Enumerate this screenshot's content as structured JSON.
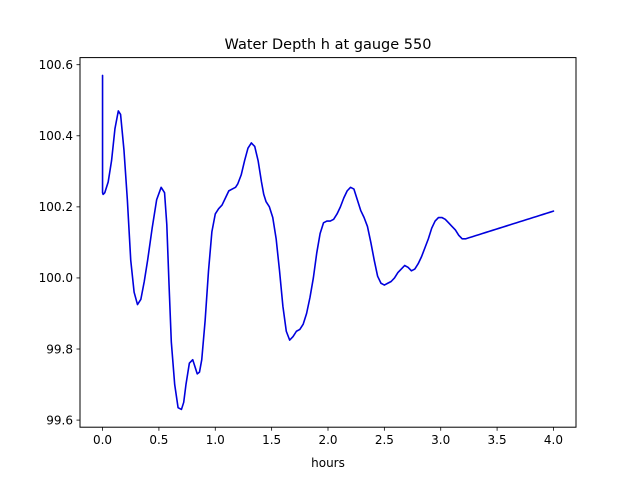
{
  "chart_data": {
    "type": "line",
    "title": "Water Depth h at gauge 550",
    "xlabel": "hours",
    "ylabel": "",
    "xlim": [
      -0.2,
      4.2
    ],
    "ylim": [
      99.58,
      100.62
    ],
    "xticks": [
      0.0,
      0.5,
      1.0,
      1.5,
      2.0,
      2.5,
      3.0,
      3.5,
      4.0
    ],
    "xtick_labels": [
      "0.0",
      "0.5",
      "1.0",
      "1.5",
      "2.0",
      "2.5",
      "3.0",
      "3.5",
      "4.0"
    ],
    "yticks": [
      99.6,
      99.8,
      100.0,
      100.2,
      100.4,
      100.6
    ],
    "ytick_labels": [
      "99.6",
      "99.8",
      "100.0",
      "100.2",
      "100.4",
      "100.6"
    ],
    "grid": false,
    "legend": "none",
    "series": [
      {
        "color": "#0000dd",
        "x": [
          0.0,
          0.0,
          0.005,
          0.02,
          0.05,
          0.08,
          0.11,
          0.14,
          0.16,
          0.19,
          0.22,
          0.25,
          0.28,
          0.31,
          0.34,
          0.37,
          0.4,
          0.44,
          0.48,
          0.52,
          0.55,
          0.57,
          0.59,
          0.61,
          0.64,
          0.67,
          0.7,
          0.72,
          0.74,
          0.77,
          0.8,
          0.82,
          0.84,
          0.86,
          0.88,
          0.91,
          0.94,
          0.97,
          1.0,
          1.03,
          1.06,
          1.09,
          1.12,
          1.15,
          1.18,
          1.2,
          1.23,
          1.26,
          1.29,
          1.32,
          1.35,
          1.38,
          1.41,
          1.43,
          1.45,
          1.48,
          1.51,
          1.54,
          1.57,
          1.6,
          1.63,
          1.66,
          1.69,
          1.72,
          1.75,
          1.78,
          1.81,
          1.84,
          1.87,
          1.9,
          1.93,
          1.96,
          1.99,
          2.02,
          2.05,
          2.08,
          2.11,
          2.14,
          2.17,
          2.2,
          2.23,
          2.26,
          2.29,
          2.32,
          2.35,
          2.38,
          2.41,
          2.44,
          2.47,
          2.5,
          2.53,
          2.56,
          2.59,
          2.62,
          2.65,
          2.68,
          2.71,
          2.74,
          2.77,
          2.8,
          2.83,
          2.86,
          2.89,
          2.92,
          2.95,
          2.98,
          3.01,
          3.04,
          3.07,
          3.1,
          3.13,
          3.16,
          3.19,
          3.22,
          3.25,
          3.28,
          3.31,
          3.34,
          3.37,
          3.4,
          3.43,
          3.46,
          3.49,
          3.52,
          3.55,
          3.58,
          3.61,
          3.64,
          3.67,
          3.7,
          3.73,
          3.76,
          3.79,
          3.82,
          3.85,
          3.88,
          3.91,
          3.94,
          3.97,
          4.0
        ],
        "y": [
          100.57,
          100.24,
          100.235,
          100.24,
          100.27,
          100.33,
          100.42,
          100.47,
          100.46,
          100.36,
          100.22,
          100.05,
          99.96,
          99.925,
          99.94,
          99.99,
          100.05,
          100.14,
          100.22,
          100.255,
          100.24,
          100.15,
          99.98,
          99.82,
          99.7,
          99.635,
          99.63,
          99.65,
          99.7,
          99.76,
          99.77,
          99.75,
          99.73,
          99.735,
          99.77,
          99.88,
          100.02,
          100.13,
          100.18,
          100.195,
          100.205,
          100.225,
          100.245,
          100.25,
          100.255,
          100.265,
          100.29,
          100.33,
          100.365,
          100.38,
          100.37,
          100.33,
          100.27,
          100.235,
          100.215,
          100.2,
          100.17,
          100.11,
          100.02,
          99.92,
          99.85,
          99.825,
          99.835,
          99.85,
          99.855,
          99.87,
          99.9,
          99.945,
          100.0,
          100.07,
          100.125,
          100.155,
          100.16,
          100.16,
          100.165,
          100.18,
          100.2,
          100.225,
          100.245,
          100.255,
          100.25,
          100.22,
          100.19,
          100.17,
          100.145,
          100.1,
          100.05,
          100.005,
          99.985,
          99.98,
          99.985,
          99.99,
          100.0,
          100.015,
          100.025,
          100.035,
          100.03,
          100.02,
          100.025,
          100.04,
          100.06,
          100.085,
          100.11,
          100.14,
          100.16,
          100.17,
          100.17,
          100.165,
          100.155,
          100.145,
          100.135,
          100.12,
          100.11,
          100.11,
          100.113,
          100.116,
          100.119,
          100.122,
          100.125,
          100.128,
          100.131,
          100.134,
          100.137,
          100.14,
          100.143,
          100.146,
          100.149,
          100.152,
          100.155,
          100.158,
          100.161,
          100.164,
          100.167,
          100.17,
          100.173,
          100.176,
          100.179,
          100.182,
          100.185,
          100.188
        ]
      }
    ]
  }
}
